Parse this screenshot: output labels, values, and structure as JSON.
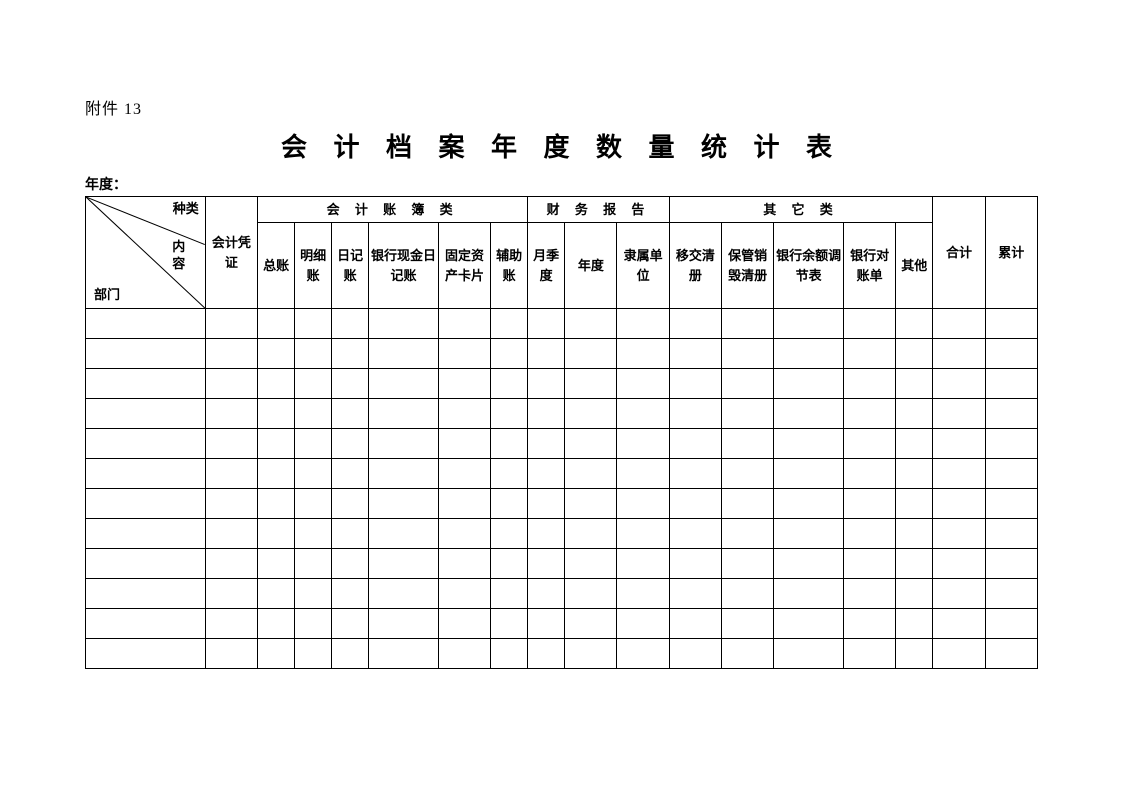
{
  "attachment_label": "附件 13",
  "title": "会 计 档 案 年 度 数 量 统 计 表",
  "year_label": "年度：",
  "diagonal": {
    "kind": "种类",
    "content": "内容",
    "dept": "部门"
  },
  "headers": {
    "pingzheng": "会计凭证",
    "group_zhangbu": "会 计 账 簿 类",
    "group_caiwu": "财 务 报 告",
    "group_qita": "其 它 类",
    "heji": "合计",
    "leiji": "累计",
    "zongzhang": "总账",
    "mingxi": "明细账",
    "riji": "日记账",
    "yinhangxj": "银行现金日记账",
    "guding": "固定资产卡片",
    "fuzhu": "辅助账",
    "yueji": "月季度",
    "niandu": "年度",
    "lishu": "隶属单位",
    "yijiao": "移交清册",
    "baoguan": "保管销毁清册",
    "yinhangyue": "银行余额调节表",
    "yinhangdz": "银行对账单",
    "qita": "其他"
  },
  "num_data_rows": 12,
  "num_data_cols": 17,
  "style": {
    "background_color": "#ffffff",
    "border_color": "#000000",
    "text_color": "#000000",
    "title_fontsize": 26,
    "header_fontsize": 13,
    "body_fontsize": 13
  }
}
